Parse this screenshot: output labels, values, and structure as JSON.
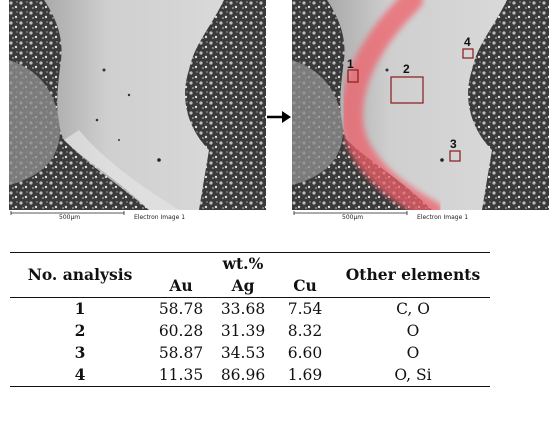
{
  "figure": {
    "left_image": {
      "scale_bar_label": "500µm",
      "caption": "Electron Image 1"
    },
    "right_image": {
      "scale_bar_label": "500µm",
      "caption": "Electron Image 1",
      "regions": [
        {
          "label": "1"
        },
        {
          "label": "2"
        },
        {
          "label": "3"
        },
        {
          "label": "4"
        }
      ],
      "highlight_color": "#f0606a",
      "region_box_color": "#8b1a1a"
    },
    "arrow_icon": "right-arrow-icon"
  },
  "table": {
    "header": {
      "col_analysis": "No. analysis",
      "group_label": "wt.%",
      "col_au": "Au",
      "col_ag": "Ag",
      "col_cu": "Cu",
      "col_other": "Other elements"
    },
    "rows": [
      {
        "no": "1",
        "au": "58.78",
        "ag": "33.68",
        "cu": "7.54",
        "other": "C, O"
      },
      {
        "no": "2",
        "au": "60.28",
        "ag": "31.39",
        "cu": "8.32",
        "other": "O"
      },
      {
        "no": "3",
        "au": "58.87",
        "ag": "34.53",
        "cu": "6.60",
        "other": "O"
      },
      {
        "no": "4",
        "au": "11.35",
        "ag": "86.96",
        "cu": "1.69",
        "other": "O, Si"
      }
    ]
  }
}
